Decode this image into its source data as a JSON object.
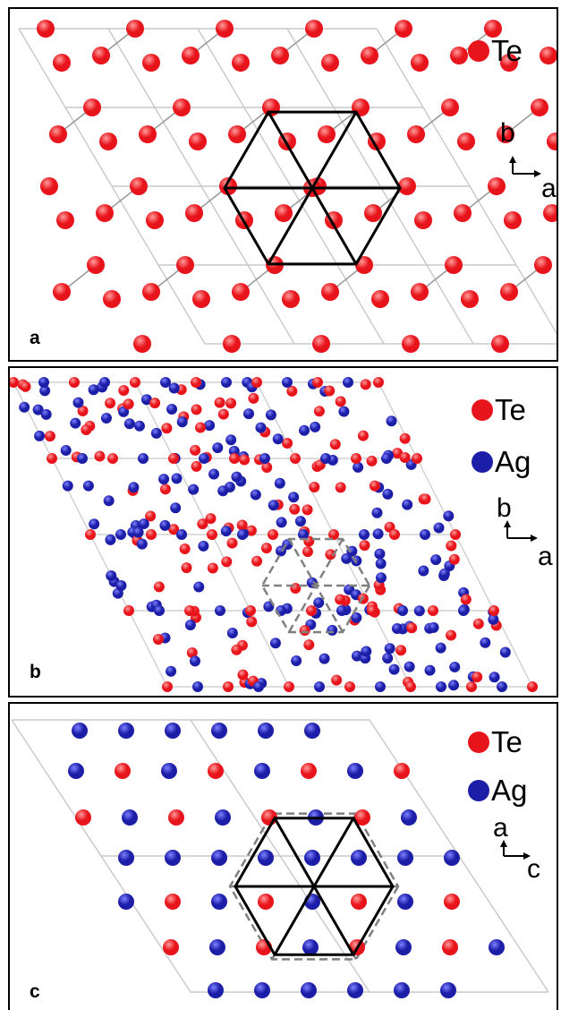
{
  "panels": [
    {
      "label": "a",
      "legend": [
        {
          "text": "Te",
          "color": "#e8141b"
        }
      ],
      "axes": {
        "up": "b",
        "right": "a"
      }
    },
    {
      "label": "b",
      "legend": [
        {
          "text": "Te",
          "color": "#e8141b"
        },
        {
          "text": "Ag",
          "color": "#1c1ea8"
        }
      ],
      "axes": {
        "up": "b",
        "right": "a"
      }
    },
    {
      "label": "c",
      "legend": [
        {
          "text": "Te",
          "color": "#e8141b"
        },
        {
          "text": "Ag",
          "color": "#1c1ea8"
        }
      ],
      "axes": {
        "up": "a",
        "right": "c"
      }
    }
  ],
  "colors": {
    "te": "#e8141b",
    "ag": "#1c1ea8",
    "cell_line": "#bdbdbd",
    "hexagon_solid": "#000000",
    "hexagon_dashed": "#808080"
  }
}
